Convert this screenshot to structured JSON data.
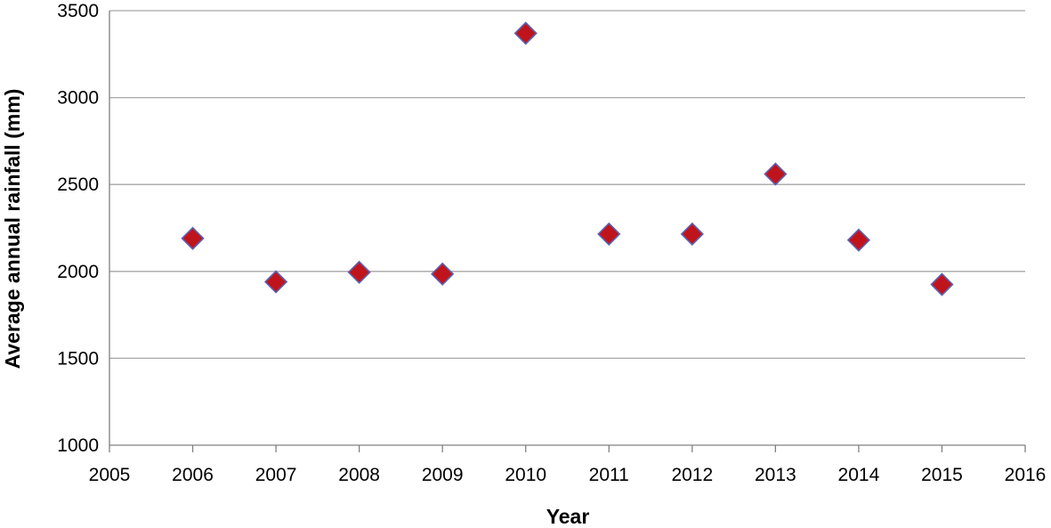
{
  "chart_data": {
    "type": "scatter",
    "title": "",
    "xlabel": "Year",
    "ylabel": "Average annual rainfall (mm)",
    "xlim": [
      2005,
      2016
    ],
    "ylim": [
      1000,
      3500
    ],
    "x_ticks": [
      "2005",
      "2006",
      "2007",
      "2008",
      "2009",
      "2010",
      "2011",
      "2012",
      "2013",
      "2014",
      "2015",
      "2016"
    ],
    "y_ticks": [
      "1000",
      "1500",
      "2000",
      "2500",
      "3000",
      "3500"
    ],
    "grid": "horizontal",
    "legend": "none",
    "marker": "diamond",
    "colors": {
      "marker_fill": "#c0141c",
      "marker_edge": "#5a62b4",
      "grid": "#a6a6a6",
      "axis": "#808080"
    },
    "series": [
      {
        "x": [
          2006,
          2007,
          2008,
          2009,
          2010,
          2011,
          2012,
          2013,
          2014,
          2015
        ],
        "y": [
          2190,
          1940,
          1995,
          1985,
          3370,
          2215,
          2215,
          2560,
          2180,
          1925
        ]
      }
    ]
  }
}
